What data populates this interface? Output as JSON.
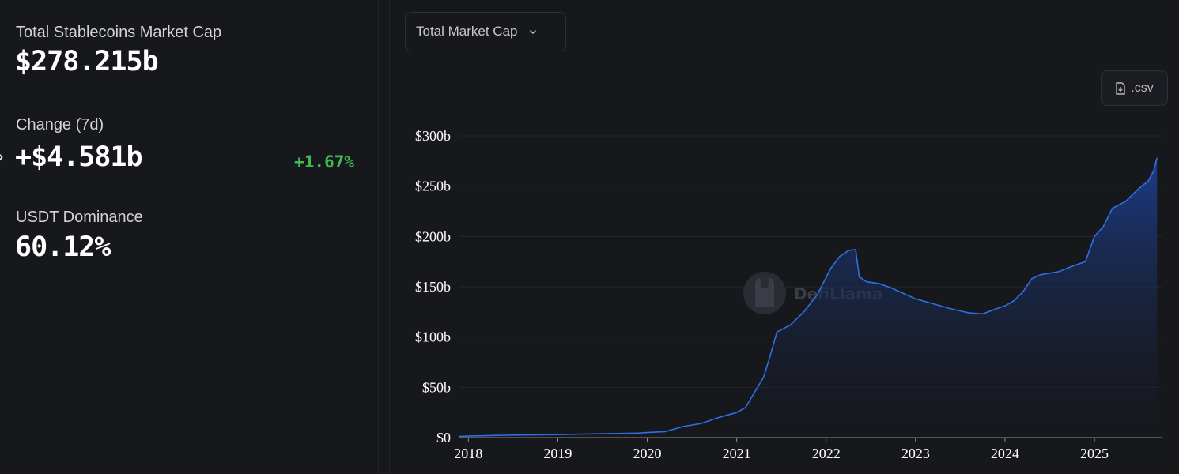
{
  "stats": {
    "market_cap_label": "Total Stablecoins Market Cap",
    "market_cap_value": "$278.215b",
    "change_label": "Change (7d)",
    "change_value": "+$4.581b",
    "change_pct": "+1.67%",
    "dominance_label": "USDT Dominance",
    "dominance_value": "60.12%"
  },
  "controls": {
    "metric_select": "Total Market Cap",
    "csv_button": ".csv"
  },
  "watermark": "DefiLlama",
  "colors": {
    "line": "#2f6fe4",
    "fill_top": "#1c3f8f",
    "positive": "#3fb950",
    "background": "#17181c"
  },
  "chart_data": {
    "type": "area",
    "title": "",
    "xlabel": "",
    "ylabel": "",
    "ylim": [
      0,
      300
    ],
    "yticks": [
      0,
      50,
      100,
      150,
      200,
      250,
      300
    ],
    "ytick_labels": [
      "$0",
      "$50b",
      "$100b",
      "$150b",
      "$200b",
      "$250b",
      "$300b"
    ],
    "xticks": [
      2018,
      2019,
      2020,
      2021,
      2022,
      2023,
      2024,
      2025
    ],
    "xtick_labels": [
      "2018",
      "2019",
      "2020",
      "2021",
      "2022",
      "2023",
      "2024",
      "2025"
    ],
    "xlim": [
      2017.9,
      2025.76
    ],
    "grid": true,
    "series": [
      {
        "x": [
          2017.9,
          2018.0,
          2018.5,
          2019.0,
          2019.3,
          2019.6,
          2019.9,
          2020.0,
          2020.2,
          2020.4,
          2020.6,
          2020.8,
          2021.0,
          2021.1,
          2021.2,
          2021.3,
          2021.37,
          2021.45,
          2021.6,
          2021.75,
          2021.9,
          2022.05,
          2022.15,
          2022.25,
          2022.33,
          2022.37,
          2022.45,
          2022.6,
          2022.75,
          2022.9,
          2023.0,
          2023.2,
          2023.4,
          2023.6,
          2023.75,
          2023.9,
          2024.0,
          2024.1,
          2024.2,
          2024.3,
          2024.4,
          2024.6,
          2024.8,
          2024.9,
          2025.0,
          2025.1,
          2025.2,
          2025.35,
          2025.5,
          2025.6,
          2025.66,
          2025.7
        ],
        "values": [
          1.2,
          1.5,
          2.5,
          3.0,
          3.5,
          4.0,
          4.5,
          5.0,
          6.0,
          11.0,
          14.0,
          20.0,
          25.0,
          30.0,
          45.0,
          60.0,
          80.0,
          105.0,
          112.0,
          125.0,
          142.0,
          168.0,
          180.0,
          186.0,
          187.0,
          160.0,
          155.0,
          153.0,
          148.0,
          142.0,
          138.0,
          133.0,
          128.0,
          124.0,
          123.0,
          128.0,
          131.0,
          136.0,
          145.0,
          158.0,
          162.0,
          165.0,
          172.0,
          175.0,
          200.0,
          210.0,
          228.0,
          235.0,
          248.0,
          255.0,
          265.0,
          278.2
        ]
      }
    ]
  }
}
